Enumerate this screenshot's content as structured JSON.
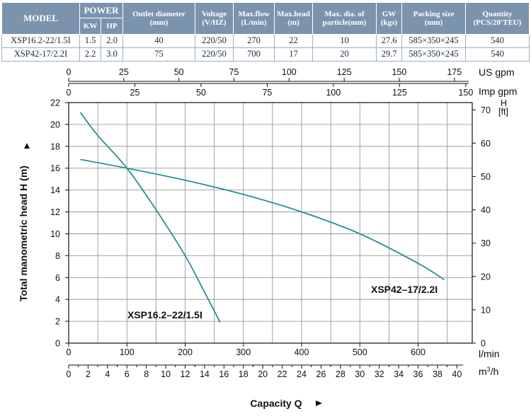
{
  "table": {
    "headers": {
      "model": "MODEL",
      "power": "POWER",
      "kw": "KW",
      "hp": "HP",
      "outlet": [
        "Outlet diameter",
        "(mm)"
      ],
      "voltage": [
        "Voltage",
        "(V/HZ)"
      ],
      "maxflow": [
        "Max.flow",
        "(L/min)"
      ],
      "maxhead": [
        "Max.head",
        "(m)"
      ],
      "particle": [
        "Max. dia. of",
        "particle(mm)"
      ],
      "gw": [
        "GW",
        "(kgs)"
      ],
      "packing": [
        "Packing size",
        "(mm)"
      ],
      "quantity": [
        "Quantity",
        "(PCS/20'TEU)"
      ]
    },
    "rows": [
      [
        "XSP16.2-22/1.5I",
        "1.5",
        "2.0",
        "40",
        "220/50",
        "270",
        "22",
        "10",
        "27.6",
        "585×350×245",
        "540"
      ],
      [
        "XSP42-17/2.2I",
        "2.2",
        "3.0",
        "75",
        "220/50",
        "700",
        "17",
        "20",
        "29.7",
        "585×350×245",
        "540"
      ]
    ]
  },
  "chart_data": {
    "type": "line",
    "ylabel": "Total manometric head H (m)",
    "xlabel": "Capacity Q",
    "x_unit_main": "l/min",
    "xlim": [
      0,
      680
    ],
    "ylim": [
      0,
      22
    ],
    "x_ticks": [
      0,
      100,
      200,
      300,
      400,
      500,
      600
    ],
    "y_ticks": [
      0,
      2,
      4,
      6,
      8,
      10,
      12,
      14,
      16,
      18,
      20,
      22
    ],
    "grid": true,
    "secondary_axes": {
      "us_gpm": {
        "label": "US gpm",
        "ticks": [
          "0",
          "25",
          "50",
          "75",
          "100",
          "125",
          "150",
          "175"
        ]
      },
      "imp_gpm": {
        "label": "Imp gpm",
        "ticks": [
          "0",
          "25",
          "50",
          "75",
          "100",
          "125",
          "150"
        ]
      },
      "m3h": {
        "label": "m³/h",
        "unit_base": "m",
        "unit_sup": "3",
        "unit_tail": "/h",
        "ticks": [
          "0",
          "2",
          "4",
          "6",
          "8",
          "10",
          "12",
          "14",
          "16",
          "18",
          "20",
          "22",
          "24",
          "26",
          "28",
          "30",
          "32",
          "34",
          "36",
          "38",
          "40"
        ]
      },
      "ft": {
        "label_top": "H",
        "label_bottom": "[ft]",
        "ticks": [
          "0",
          "10",
          "20",
          "30",
          "40",
          "50",
          "60",
          "70"
        ]
      }
    },
    "series": [
      {
        "name": "XSP16.2–22/1.5I",
        "color": "#2a8f93",
        "x": [
          20,
          50,
          100,
          150,
          200,
          230,
          260
        ],
        "y": [
          21.1,
          19.0,
          16.0,
          12.2,
          8.0,
          5.0,
          1.9
        ]
      },
      {
        "name": "XSP42–17/2.2I",
        "color": "#2a8f93",
        "x": [
          20,
          100,
          200,
          300,
          400,
          500,
          600,
          645
        ],
        "y": [
          16.8,
          16.0,
          14.9,
          13.6,
          12.0,
          10.0,
          7.3,
          5.8
        ]
      }
    ]
  }
}
